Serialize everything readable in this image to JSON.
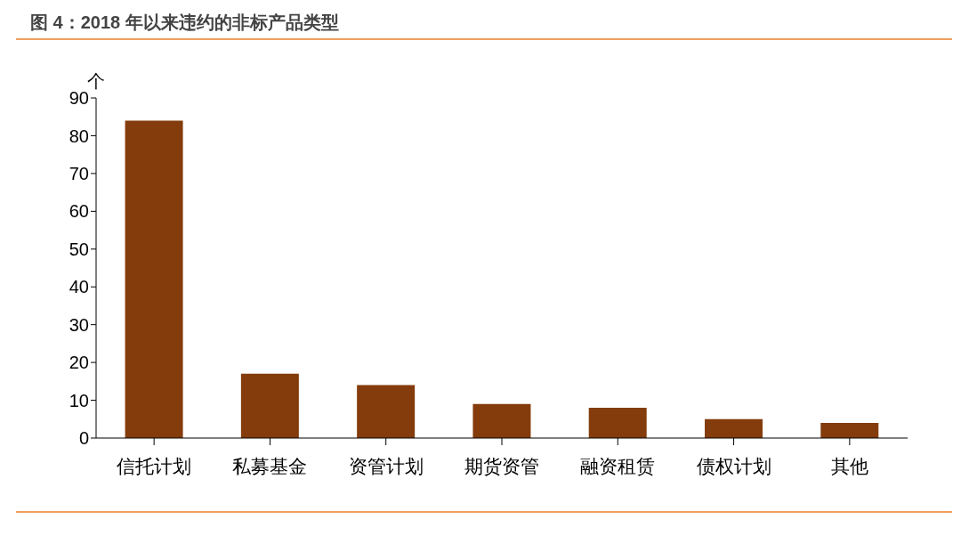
{
  "chart_data": {
    "type": "bar",
    "title": "图 4：2018 年以来违约的非标产品类型",
    "ylabel": "个",
    "categories": [
      "信托计划",
      "私募基金",
      "资管计划",
      "期货资管",
      "融资租赁",
      "债权计划",
      "其他"
    ],
    "values": [
      84,
      17,
      14,
      9,
      8,
      5,
      4
    ],
    "color": "#843c0c",
    "ylim": [
      0,
      90
    ],
    "yticks": [
      0,
      10,
      20,
      30,
      40,
      50,
      60,
      70,
      80,
      90
    ]
  }
}
